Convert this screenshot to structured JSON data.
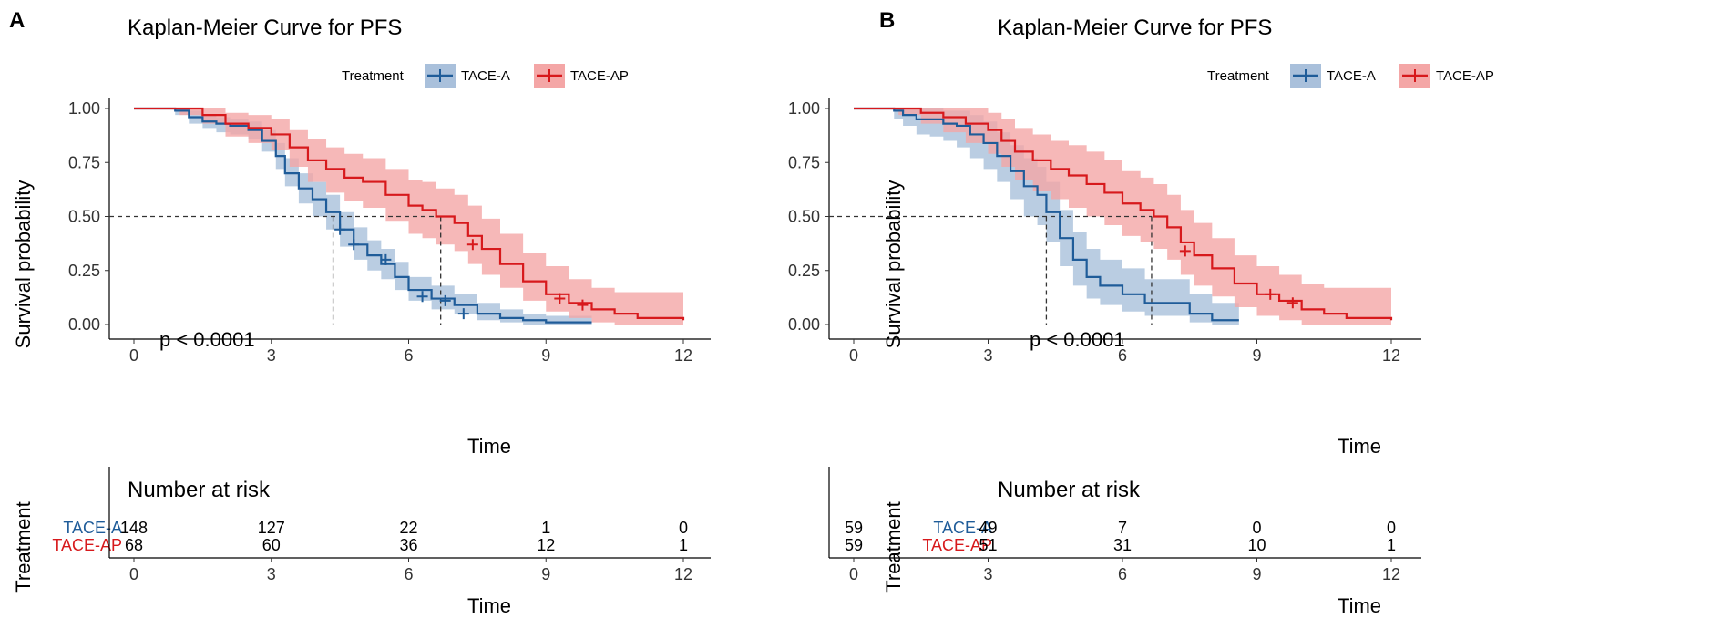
{
  "colors": {
    "a": "#1f5c99",
    "ap": "#d7191c",
    "a_band": "#a9c0db",
    "ap_band": "#f4a6a6"
  },
  "chart_data": [
    {
      "type": "line",
      "panel": "A",
      "title": "Kaplan-Meier Curve for PFS",
      "legend_title": "Treatment",
      "xlabel": "Time",
      "ylabel": "Survival probability",
      "xlim": [
        0,
        12
      ],
      "ylim": [
        0,
        1
      ],
      "xticks": [
        "0",
        "3",
        "6",
        "9",
        "12"
      ],
      "yticks": [
        "0.00",
        "0.25",
        "0.50",
        "0.75",
        "1.00"
      ],
      "p_value": "p < 0.0001",
      "median_lines": [
        4.35,
        6.7
      ],
      "series": [
        {
          "name": "TACE-A",
          "color_key": "a",
          "x": [
            0,
            0.9,
            1.2,
            1.5,
            1.8,
            2.1,
            2.5,
            2.8,
            3.1,
            3.3,
            3.6,
            3.9,
            4.2,
            4.5,
            4.8,
            5.1,
            5.4,
            5.7,
            6.0,
            6.5,
            7.0,
            7.5,
            8.0,
            8.5,
            9.0,
            10.0
          ],
          "y": [
            1.0,
            0.99,
            0.96,
            0.94,
            0.93,
            0.92,
            0.9,
            0.85,
            0.78,
            0.7,
            0.63,
            0.58,
            0.52,
            0.44,
            0.37,
            0.32,
            0.28,
            0.22,
            0.16,
            0.12,
            0.09,
            0.05,
            0.03,
            0.02,
            0.01,
            0.01
          ],
          "lower": [
            1.0,
            0.97,
            0.93,
            0.91,
            0.89,
            0.88,
            0.86,
            0.8,
            0.72,
            0.64,
            0.56,
            0.5,
            0.44,
            0.36,
            0.3,
            0.25,
            0.21,
            0.16,
            0.11,
            0.07,
            0.05,
            0.02,
            0.01,
            0.0,
            0.0,
            0.0
          ],
          "upper": [
            1.0,
            1.0,
            0.99,
            0.97,
            0.96,
            0.95,
            0.94,
            0.9,
            0.84,
            0.77,
            0.7,
            0.66,
            0.6,
            0.52,
            0.45,
            0.39,
            0.35,
            0.29,
            0.22,
            0.18,
            0.14,
            0.1,
            0.07,
            0.05,
            0.04,
            0.04
          ],
          "censor_x": [
            4.5,
            4.8,
            5.5,
            6.3,
            6.8,
            7.2
          ],
          "censor_y": [
            0.44,
            0.37,
            0.3,
            0.13,
            0.11,
            0.05
          ]
        },
        {
          "name": "TACE-AP",
          "color_key": "ap",
          "x": [
            0,
            1.0,
            1.5,
            2.0,
            2.5,
            3.0,
            3.4,
            3.8,
            4.2,
            4.6,
            5.0,
            5.5,
            6.0,
            6.3,
            6.6,
            7.0,
            7.3,
            7.6,
            8.0,
            8.5,
            9.0,
            9.5,
            10.0,
            10.5,
            11.0,
            11.5,
            12.0
          ],
          "y": [
            1.0,
            1.0,
            0.97,
            0.93,
            0.91,
            0.88,
            0.82,
            0.76,
            0.72,
            0.68,
            0.66,
            0.6,
            0.55,
            0.53,
            0.5,
            0.47,
            0.41,
            0.35,
            0.28,
            0.2,
            0.14,
            0.1,
            0.07,
            0.05,
            0.03,
            0.03,
            0.02
          ],
          "lower": [
            1.0,
            0.97,
            0.93,
            0.87,
            0.84,
            0.81,
            0.73,
            0.66,
            0.61,
            0.57,
            0.54,
            0.48,
            0.42,
            0.4,
            0.37,
            0.34,
            0.28,
            0.23,
            0.17,
            0.11,
            0.06,
            0.03,
            0.01,
            0.0,
            0.0,
            0.0,
            0.0
          ],
          "upper": [
            1.0,
            1.0,
            1.0,
            0.98,
            0.97,
            0.95,
            0.9,
            0.86,
            0.82,
            0.79,
            0.77,
            0.72,
            0.67,
            0.66,
            0.63,
            0.6,
            0.55,
            0.49,
            0.42,
            0.33,
            0.27,
            0.21,
            0.17,
            0.15,
            0.15,
            0.15,
            0.14
          ],
          "censor_x": [
            7.4,
            9.3,
            9.8
          ],
          "censor_y": [
            0.37,
            0.12,
            0.09
          ]
        }
      ],
      "risk_table": {
        "title": "Number at risk",
        "ylabel": "Treatment",
        "xlabel": "Time",
        "times": [
          0,
          3,
          6,
          9,
          12
        ],
        "rows": [
          {
            "label": "TACE-A",
            "color_key": "a",
            "values": [
              "148",
              "127",
              "22",
              "1",
              "0"
            ]
          },
          {
            "label": "TACE-AP",
            "color_key": "ap",
            "values": [
              "68",
              "60",
              "36",
              "12",
              "1"
            ]
          }
        ]
      }
    },
    {
      "type": "line",
      "panel": "B",
      "title": "Kaplan-Meier Curve for PFS",
      "legend_title": "Treatment",
      "xlabel": "Time",
      "ylabel": "Survival probability",
      "xlim": [
        0,
        12
      ],
      "ylim": [
        0,
        1
      ],
      "xticks": [
        "0",
        "3",
        "6",
        "9",
        "12"
      ],
      "yticks": [
        "0.00",
        "0.25",
        "0.50",
        "0.75",
        "1.00"
      ],
      "p_value": "p < 0.0001",
      "median_lines": [
        4.3,
        6.65
      ],
      "series": [
        {
          "name": "TACE-A",
          "color_key": "a",
          "x": [
            0,
            0.9,
            1.1,
            1.4,
            1.7,
            2.0,
            2.3,
            2.6,
            2.9,
            3.2,
            3.5,
            3.8,
            4.1,
            4.3,
            4.6,
            4.9,
            5.2,
            5.5,
            6.0,
            6.5,
            7.0,
            7.5,
            8.0,
            8.6
          ],
          "y": [
            1.0,
            0.99,
            0.97,
            0.95,
            0.95,
            0.93,
            0.92,
            0.88,
            0.84,
            0.78,
            0.71,
            0.64,
            0.6,
            0.52,
            0.4,
            0.3,
            0.22,
            0.18,
            0.14,
            0.1,
            0.1,
            0.05,
            0.02,
            0.02
          ],
          "lower": [
            1.0,
            0.95,
            0.92,
            0.88,
            0.87,
            0.85,
            0.82,
            0.77,
            0.72,
            0.66,
            0.58,
            0.5,
            0.46,
            0.38,
            0.27,
            0.18,
            0.12,
            0.09,
            0.06,
            0.04,
            0.04,
            0.01,
            0.0,
            0.0
          ],
          "upper": [
            1.0,
            1.0,
            1.0,
            1.0,
            1.0,
            0.99,
            0.99,
            0.97,
            0.94,
            0.89,
            0.83,
            0.77,
            0.73,
            0.66,
            0.53,
            0.43,
            0.35,
            0.3,
            0.26,
            0.21,
            0.21,
            0.14,
            0.1,
            0.1
          ],
          "censor_x": [],
          "censor_y": []
        },
        {
          "name": "TACE-AP",
          "color_key": "ap",
          "x": [
            0,
            1.0,
            1.5,
            2.0,
            2.5,
            3.0,
            3.3,
            3.6,
            4.0,
            4.4,
            4.8,
            5.2,
            5.6,
            6.0,
            6.4,
            6.7,
            7.0,
            7.3,
            7.6,
            8.0,
            8.5,
            9.0,
            9.5,
            10.0,
            10.5,
            11.0,
            12.0
          ],
          "y": [
            1.0,
            1.0,
            0.98,
            0.96,
            0.93,
            0.9,
            0.85,
            0.8,
            0.76,
            0.72,
            0.69,
            0.65,
            0.61,
            0.56,
            0.53,
            0.5,
            0.45,
            0.38,
            0.32,
            0.26,
            0.19,
            0.14,
            0.11,
            0.07,
            0.05,
            0.03,
            0.02
          ],
          "lower": [
            1.0,
            0.97,
            0.93,
            0.89,
            0.84,
            0.79,
            0.73,
            0.67,
            0.62,
            0.58,
            0.54,
            0.5,
            0.46,
            0.41,
            0.38,
            0.35,
            0.3,
            0.23,
            0.18,
            0.13,
            0.08,
            0.04,
            0.02,
            0.0,
            0.0,
            0.0,
            0.0
          ],
          "upper": [
            1.0,
            1.0,
            1.0,
            1.0,
            1.0,
            0.98,
            0.95,
            0.91,
            0.88,
            0.85,
            0.83,
            0.8,
            0.76,
            0.71,
            0.68,
            0.65,
            0.6,
            0.53,
            0.47,
            0.4,
            0.32,
            0.27,
            0.23,
            0.19,
            0.17,
            0.17,
            0.16
          ],
          "censor_x": [
            7.4,
            9.3,
            9.8
          ],
          "censor_y": [
            0.34,
            0.14,
            0.1
          ]
        }
      ],
      "risk_table": {
        "title": "Number at risk",
        "ylabel": "Treatment",
        "xlabel": "Time",
        "times": [
          0,
          3,
          6,
          9,
          12
        ],
        "rows": [
          {
            "label": "TACE-A",
            "color_key": "a",
            "values": [
              "59",
              "49",
              "7",
              "0",
              "0"
            ]
          },
          {
            "label": "TACE-AP",
            "color_key": "ap",
            "values": [
              "59",
              "51",
              "31",
              "10",
              "1"
            ]
          }
        ]
      }
    }
  ]
}
